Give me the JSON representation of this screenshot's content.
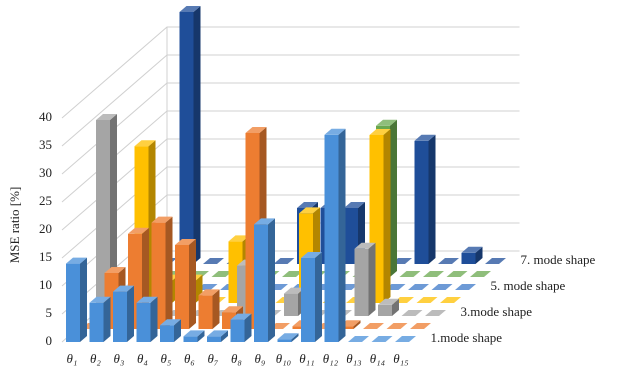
{
  "chart_data": {
    "type": "bar3d",
    "y_label": "MSE ratio [%]",
    "categories": [
      "θ₁",
      "θ₂",
      "θ₃",
      "θ₄",
      "θ₅",
      "θ₆",
      "θ₇",
      "θ₈",
      "θ₉",
      "θ₁₀",
      "θ₁₁",
      "θ₁₂",
      "θ₁₃",
      "θ₁₄",
      "θ₁₅"
    ],
    "series": [
      {
        "name": "1.mode shape",
        "color": "#4a90d9",
        "values": [
          14,
          7,
          9,
          7,
          3,
          1,
          1,
          4,
          21,
          0.5,
          15,
          37,
          0,
          0,
          0
        ]
      },
      {
        "name": null,
        "color": "#ed7d31",
        "values": [
          0,
          10,
          17,
          19,
          15,
          6,
          3,
          35,
          0,
          0.5,
          0,
          0.5,
          0,
          0,
          0
        ]
      },
      {
        "name": "3.mode shape",
        "color": "#a5a5a5",
        "values": [
          35,
          4,
          0,
          0,
          0,
          0,
          9,
          0,
          4,
          0,
          0,
          12,
          2,
          0,
          0
        ]
      },
      {
        "name": null,
        "color": "#ffc000",
        "values": [
          0,
          28,
          4,
          4,
          0,
          11,
          13,
          0,
          16,
          0,
          0,
          30,
          0,
          0,
          0
        ]
      },
      {
        "name": "5. mode shape",
        "color": "#3c78c8",
        "values": [
          0,
          0,
          0,
          0,
          0,
          0,
          0,
          0,
          0,
          0,
          0,
          0,
          0,
          0,
          0
        ]
      },
      {
        "name": null,
        "color": "#6aa84f",
        "values": [
          0,
          0,
          0,
          0,
          0,
          0,
          0,
          0,
          0,
          0,
          27,
          0,
          0,
          0,
          0
        ]
      },
      {
        "name": "7. mode shape",
        "color": "#1f4e99",
        "values": [
          0,
          45,
          0,
          0,
          0,
          0,
          10,
          10,
          10,
          0,
          0,
          22,
          0,
          2,
          0
        ]
      }
    ],
    "ylim": [
      0,
      40
    ],
    "yticks": [
      0,
      5,
      10,
      15,
      20,
      25,
      30,
      35,
      40
    ],
    "grid": true
  }
}
